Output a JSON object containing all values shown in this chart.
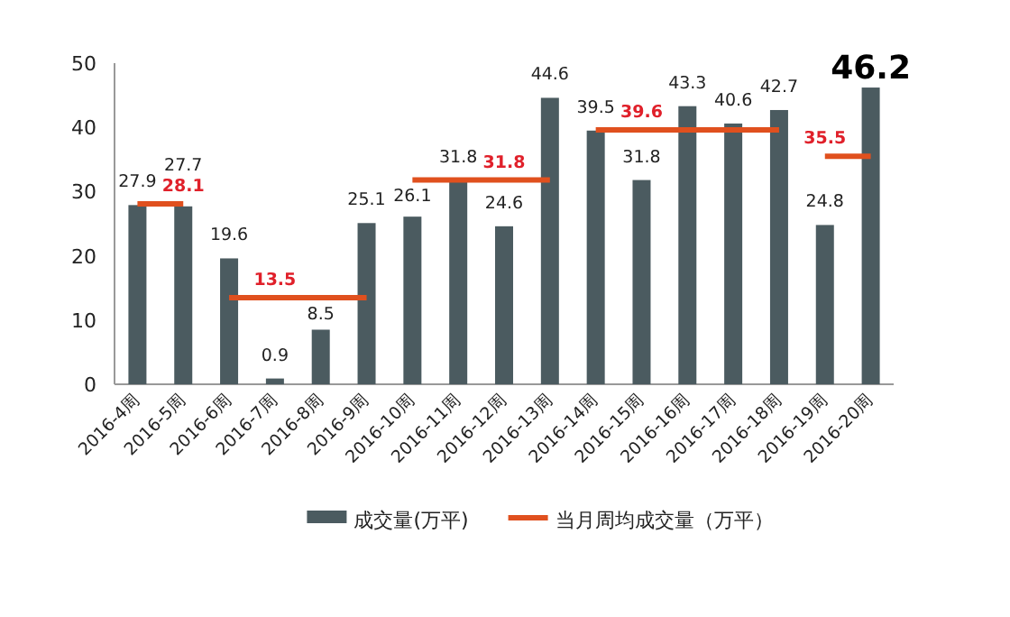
{
  "chart_data": {
    "type": "bar",
    "categories": [
      "2016-4周",
      "2016-5周",
      "2016-6周",
      "2016-7周",
      "2016-8周",
      "2016-9周",
      "2016-10周",
      "2016-11周",
      "2016-12周",
      "2016-13周",
      "2016-14周",
      "2016-15周",
      "2016-16周",
      "2016-17周",
      "2016-18周",
      "2016-19周",
      "2016-20周"
    ],
    "series": [
      {
        "name": "成交量(万平)",
        "type": "bar",
        "color": "#4b5b60",
        "values": [
          27.9,
          27.7,
          19.6,
          0.9,
          8.5,
          25.1,
          26.1,
          31.8,
          24.6,
          44.6,
          39.5,
          31.8,
          43.3,
          40.6,
          42.7,
          24.8,
          46.2
        ]
      },
      {
        "name": "当月周均成交量（万平）",
        "type": "line",
        "color": "#e0501e",
        "values": [
          28.1,
          28.1,
          null,
          null,
          null,
          null,
          null,
          null,
          null,
          null,
          null,
          null,
          null,
          null,
          null,
          null,
          null
        ],
        "value_labels": [
          null,
          "28.1",
          null,
          null,
          null,
          null,
          null,
          null,
          null,
          null,
          null,
          null,
          null,
          null,
          null,
          null,
          null
        ]
      },
      {
        "type": "line",
        "color": "#e0501e",
        "values": [
          null,
          null,
          13.5,
          13.5,
          13.5,
          13.5,
          null,
          null,
          null,
          null,
          null,
          null,
          null,
          null,
          null,
          null,
          null
        ],
        "value_labels": [
          null,
          null,
          null,
          "13.5",
          null,
          null,
          null,
          null,
          null,
          null,
          null,
          null,
          null,
          null,
          null,
          null,
          null
        ]
      },
      {
        "type": "line",
        "color": "#e0501e",
        "values": [
          null,
          null,
          null,
          null,
          null,
          null,
          31.8,
          31.8,
          31.8,
          31.8,
          null,
          null,
          null,
          null,
          null,
          null,
          null
        ],
        "value_labels": [
          null,
          null,
          null,
          null,
          null,
          null,
          null,
          null,
          "31.8",
          null,
          null,
          null,
          null,
          null,
          null,
          null,
          null
        ]
      },
      {
        "type": "line",
        "color": "#e0501e",
        "values": [
          null,
          null,
          null,
          null,
          null,
          null,
          null,
          null,
          null,
          null,
          39.6,
          39.6,
          39.6,
          39.6,
          39.6,
          null,
          null
        ],
        "value_labels": [
          null,
          null,
          null,
          null,
          null,
          null,
          null,
          null,
          null,
          null,
          null,
          "39.6",
          null,
          null,
          null,
          null,
          null
        ]
      },
      {
        "type": "line",
        "color": "#e0501e",
        "values": [
          null,
          null,
          null,
          null,
          null,
          null,
          null,
          null,
          null,
          null,
          null,
          null,
          null,
          null,
          null,
          35.5,
          35.5
        ],
        "value_labels": [
          null,
          null,
          null,
          null,
          null,
          null,
          null,
          null,
          null,
          null,
          null,
          null,
          null,
          null,
          null,
          "35.5",
          null
        ]
      }
    ],
    "data_labels": true,
    "ylim": [
      0,
      50
    ],
    "yticks": [
      0,
      10,
      20,
      30,
      40,
      50
    ],
    "grid": false,
    "legend": "bottom",
    "marker": "none",
    "line_style": "solid"
  }
}
